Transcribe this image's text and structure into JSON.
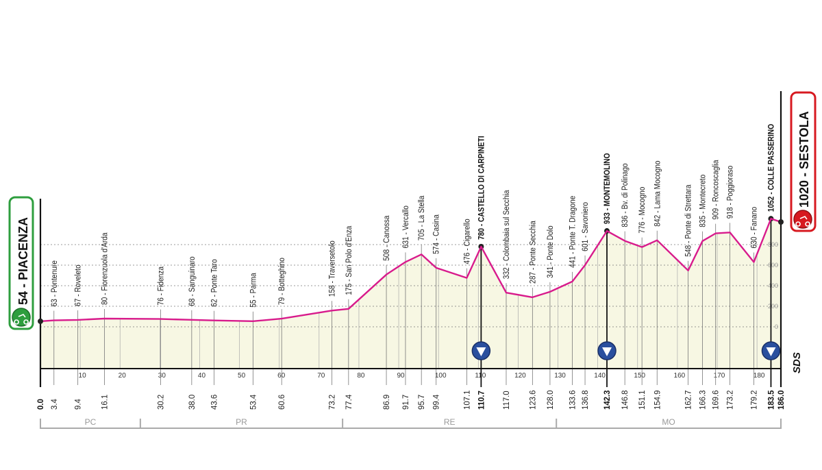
{
  "chart_data": {
    "type": "area",
    "title": "",
    "xlabel": "",
    "ylabel": "",
    "xlim": [
      0,
      186
    ],
    "ylim": [
      0,
      800
    ],
    "x_ticks": [
      0,
      10,
      20,
      30,
      40,
      50,
      60,
      70,
      80,
      90,
      100,
      110,
      120,
      130,
      140,
      150,
      160,
      170,
      180
    ],
    "y_ticks": [
      0,
      200,
      400,
      600,
      800
    ],
    "grid": "horizontal dotted",
    "colors": {
      "profile": "#d81b8c",
      "fill": "#f7f7e3",
      "start": "#2e9e3e",
      "finish": "#d71920",
      "gpm_marker": "#2a4f9e"
    },
    "start": {
      "km": "0.0",
      "elevation": 54,
      "name": "PIACENZA",
      "label": "54 - PIACENZA"
    },
    "finish": {
      "km": "186.0",
      "elevation": 1020,
      "name": "SESTOLA",
      "label": "1020 - SESTOLA"
    },
    "points": [
      {
        "km": "3.4",
        "elevation": 63,
        "name": "Pontenure"
      },
      {
        "km": "9.4",
        "elevation": 67,
        "name": "Roveleto"
      },
      {
        "km": "16.1",
        "elevation": 80,
        "name": "Fiorenzuola d'Arda"
      },
      {
        "km": "30.2",
        "elevation": 76,
        "name": "Fidenza"
      },
      {
        "km": "38.0",
        "elevation": 68,
        "name": "Sanguinaro"
      },
      {
        "km": "43.6",
        "elevation": 62,
        "name": "Ponte Taro"
      },
      {
        "km": "53.4",
        "elevation": 55,
        "name": "Parma"
      },
      {
        "km": "60.6",
        "elevation": 79,
        "name": "Botteghino"
      },
      {
        "km": "73.2",
        "elevation": 158,
        "name": "Traversetolo"
      },
      {
        "km": "77.4",
        "elevation": 175,
        "name": "San Polo d'Enza"
      },
      {
        "km": "86.9",
        "elevation": 508,
        "name": "Canossa"
      },
      {
        "km": "91.7",
        "elevation": 631,
        "name": "Vercallo"
      },
      {
        "km": "95.7",
        "elevation": 705,
        "name": "La Stella"
      },
      {
        "km": "99.4",
        "elevation": 574,
        "name": "Casina"
      },
      {
        "km": "107.1",
        "elevation": 476,
        "name": "Cigarello"
      },
      {
        "km": "110.7",
        "elevation": 780,
        "name": "CASTELLO DI CARPINETI",
        "gpm": true
      },
      {
        "km": "117.0",
        "elevation": 332,
        "name": "Colombaia sul Secchia"
      },
      {
        "km": "123.6",
        "elevation": 287,
        "name": "Ponte Secchia"
      },
      {
        "km": "128.0",
        "elevation": 341,
        "name": "Ponte Dolo"
      },
      {
        "km": "133.6",
        "elevation": 441,
        "name": "Ponte T. Dragone"
      },
      {
        "km": "136.8",
        "elevation": 601,
        "name": "Savoniero"
      },
      {
        "km": "142.3",
        "elevation": 933,
        "name": "MONTEMOLINO",
        "gpm": true
      },
      {
        "km": "146.8",
        "elevation": 836,
        "name": "Bv. di Polinago"
      },
      {
        "km": "151.1",
        "elevation": 776,
        "name": "Mocogno"
      },
      {
        "km": "154.9",
        "elevation": 842,
        "name": "Lama Mocogno"
      },
      {
        "km": "162.7",
        "elevation": 548,
        "name": "Ponte di Strettara"
      },
      {
        "km": "166.3",
        "elevation": 835,
        "name": "Montecreto"
      },
      {
        "km": "169.6",
        "elevation": 909,
        "name": "Roncoscaglia"
      },
      {
        "km": "173.2",
        "elevation": 918,
        "name": "Poggioraso"
      },
      {
        "km": "179.2",
        "elevation": 630,
        "name": "Fanano"
      },
      {
        "km": "183.5",
        "elevation": 1052,
        "name": "COLLE PASSERINO",
        "gpm": true
      }
    ],
    "regions": [
      {
        "label": "PC",
        "from": 0,
        "to": 25.1
      },
      {
        "label": "PR",
        "from": 25.1,
        "to": 75.9
      },
      {
        "label": "RE",
        "from": 75.9,
        "to": 129.6
      },
      {
        "label": "MO",
        "from": 129.6,
        "to": 186
      }
    ],
    "logo_text": "SDS"
  }
}
